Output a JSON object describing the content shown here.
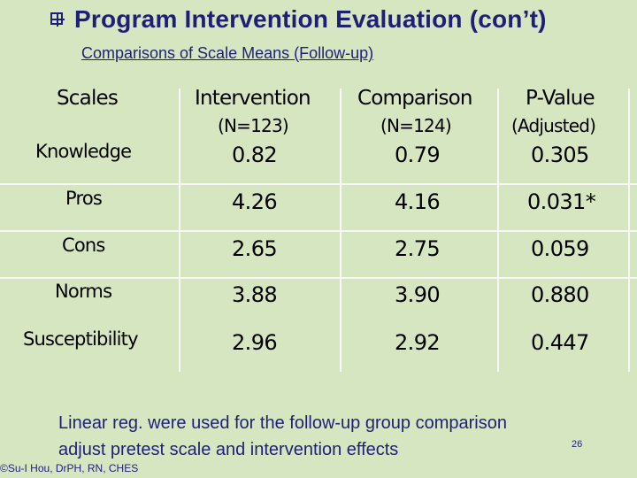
{
  "title": "Program Intervention Evaluation (con’t)",
  "subtitle": "Comparisons of Scale Means (Follow-up)",
  "table": {
    "headers": {
      "scales": "Scales",
      "intervention": "Intervention",
      "intervention_n": "(N=123)",
      "comparison": "Comparison",
      "comparison_n": "(N=124)",
      "pvalue": "P-Value",
      "pvalue_sub": "(Adjusted)"
    },
    "rows": [
      {
        "scale": "Knowledge",
        "intervention": "0.82",
        "comparison": "0.79",
        "pvalue": "0.305"
      },
      {
        "scale": "Pros",
        "intervention": "4.26",
        "comparison": "4.16",
        "pvalue": "0.031*"
      },
      {
        "scale": "Cons",
        "intervention": "2.65",
        "comparison": "2.75",
        "pvalue": "0.059"
      },
      {
        "scale": "Norms",
        "intervention": "3.88",
        "comparison": "3.90",
        "pvalue": "0.880"
      },
      {
        "scale": "Susceptibility",
        "intervention": "2.96",
        "comparison": "2.92",
        "pvalue": "0.447"
      }
    ]
  },
  "footnote": {
    "line1": "Linear reg. were used for the follow-up group comparison",
    "line2": "adjust pretest scale and intervention effects"
  },
  "page_number": "26",
  "credit": "©Su-I Hou, DrPH, RN, CHES",
  "colors": {
    "background": "#d6e6c1",
    "title": "#1f1f7a",
    "grid": "#f7f7f7"
  }
}
